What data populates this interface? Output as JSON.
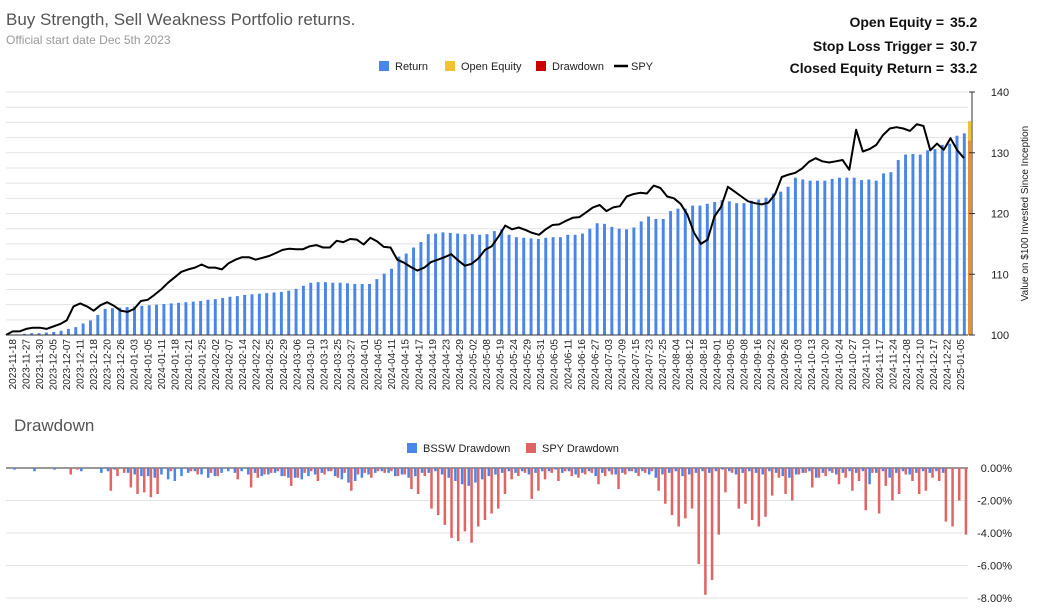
{
  "header": {
    "title": "Buy Strength, Sell Weakness Portfolio returns.",
    "subtitle": "Official start date Dec 5th 2023",
    "stats": [
      {
        "label": "Open Equity =",
        "value": "35.2"
      },
      {
        "label": "Stop Loss Trigger =",
        "value": "30.7"
      },
      {
        "label": "Closed Equity Return =",
        "value": "33.2"
      }
    ]
  },
  "colors": {
    "return": "#4a86e8",
    "open_equity": "#f1c232",
    "drawdown": "#cc0000",
    "spy": "#000000",
    "bssw_dd": "#4a86e8",
    "spy_dd": "#e06666"
  },
  "chart_data": [
    {
      "type": "bar",
      "subtype": "bar+line",
      "title": "",
      "ylabel": "Value on $100 Invested Since Inception",
      "ylim": [
        100,
        140
      ],
      "yticks": [
        100,
        110,
        120,
        130,
        140
      ],
      "grid": true,
      "legend": [
        "Return",
        "Open Equity",
        "Drawdown",
        "SPY"
      ],
      "legend_position": "top",
      "x_tick_labels": [
        "2023-11-18",
        "2023-11-27",
        "2023-11-30",
        "2023-12-05",
        "2023-12-07",
        "2023-12-11",
        "2023-12-18",
        "2023-12-20",
        "2023-12-26",
        "2024-01-03",
        "2024-01-05",
        "2024-01-11",
        "2024-01-18",
        "2024-01-21",
        "2024-01-25",
        "2024-02-02",
        "2024-02-07",
        "2024-02-14",
        "2024-02-22",
        "2024-02-25",
        "2024-02-29",
        "2024-03-06",
        "2024-03-10",
        "2024-03-13",
        "2024-03-25",
        "2024-03-27",
        "2024-04-01",
        "2024-04-05",
        "2024-04-11",
        "2024-04-15",
        "2024-04-17",
        "2024-04-19",
        "2024-04-23",
        "2024-04-29",
        "2024-05-02",
        "2024-05-08",
        "2024-05-19",
        "2024-05-24",
        "2024-05-29",
        "2024-05-31",
        "2024-06-05",
        "2024-06-11",
        "2024-06-16",
        "2024-06-27",
        "2024-07-03",
        "2024-07-09",
        "2024-07-15",
        "2024-07-23",
        "2024-07-25",
        "2024-08-04",
        "2024-08-12",
        "2024-08-18",
        "2024-09-01",
        "2024-09-05",
        "2024-09-08",
        "2024-09-16",
        "2024-09-22",
        "2024-09-26",
        "2024-10-03",
        "2024-10-13",
        "2024-10-20",
        "2024-10-24",
        "2024-10-27",
        "2024-11-10",
        "2024-11-17",
        "2024-11-24",
        "2024-12-08",
        "2024-12-10",
        "2024-12-17",
        "2024-12-22",
        "2025-01-05"
      ],
      "series": [
        {
          "name": "Return",
          "type": "bar",
          "values": [
            100.0,
            100.1,
            100.2,
            100.3,
            100.3,
            100.4,
            100.5,
            100.7,
            101.0,
            101.3,
            101.9,
            102.4,
            103.3,
            104.3,
            104.4,
            104.5,
            104.6,
            104.7,
            104.8,
            104.9,
            105.0,
            105.1,
            105.2,
            105.3,
            105.4,
            105.5,
            105.6,
            105.8,
            105.9,
            106.1,
            106.3,
            106.4,
            106.6,
            106.7,
            106.8,
            106.9,
            107.0,
            107.1,
            107.3,
            107.6,
            108.1,
            108.6,
            108.7,
            108.7,
            108.6,
            108.6,
            108.5,
            108.4,
            108.4,
            108.4,
            109.2,
            110.1,
            110.9,
            112.9,
            113.4,
            114.4,
            115.3,
            116.6,
            116.7,
            116.9,
            116.8,
            116.7,
            116.6,
            116.6,
            116.5,
            116.6,
            117.1,
            117.4,
            116.5,
            116.1,
            116.0,
            115.9,
            115.8,
            116.0,
            116.1,
            116.1,
            116.5,
            116.5,
            116.7,
            117.5,
            118.4,
            118.3,
            117.8,
            117.5,
            117.4,
            117.7,
            118.7,
            119.5,
            119.1,
            119.1,
            120.4,
            120.8,
            120.8,
            121.3,
            121.3,
            121.6,
            121.9,
            122.2,
            122.0,
            121.7,
            121.7,
            122.1,
            122.3,
            122.6,
            123.3,
            123.6,
            124.4,
            125.9,
            125.6,
            125.4,
            125.4,
            125.4,
            125.7,
            125.9,
            125.9,
            125.9,
            125.5,
            125.6,
            125.4,
            126.6,
            126.8,
            128.8,
            129.7,
            129.8,
            129.7,
            130.4,
            130.6,
            131.3,
            131.5,
            132.8,
            133.2
          ]
        },
        {
          "name": "SPY",
          "type": "line",
          "values": [
            100.0,
            100.6,
            100.6,
            101.0,
            101.2,
            101.2,
            101.0,
            101.4,
            101.8,
            102.4,
            104.7,
            105.2,
            104.7,
            104.0,
            104.9,
            105.4,
            104.8,
            104.0,
            103.8,
            104.3,
            105.6,
            105.8,
            106.6,
            107.5,
            108.6,
            109.5,
            110.4,
            110.8,
            111.1,
            111.6,
            111.1,
            111.1,
            110.8,
            111.8,
            112.4,
            112.8,
            112.8,
            112.4,
            112.7,
            113.0,
            113.5,
            114.0,
            114.2,
            114.1,
            114.1,
            114.6,
            114.8,
            114.4,
            114.4,
            115.5,
            115.3,
            115.8,
            115.7,
            114.9,
            116.0,
            115.4,
            114.5,
            114.4,
            112.4,
            111.9,
            111.2,
            110.6,
            111.1,
            112.0,
            112.4,
            112.8,
            113.3,
            112.3,
            111.4,
            111.7,
            112.6,
            114.0,
            114.6,
            116.2,
            118.0,
            117.4,
            117.7,
            117.3,
            116.8,
            116.5,
            117.4,
            118.1,
            118.2,
            118.8,
            119.3,
            119.4,
            120.2,
            121.0,
            121.4,
            120.4,
            121.0,
            121.2,
            122.8,
            123.2,
            123.4,
            123.3,
            124.6,
            124.2,
            122.8,
            122.5,
            121.6,
            119.8,
            116.8,
            115.0,
            115.7,
            119.5,
            121.1,
            124.4,
            123.6,
            122.8,
            122.0,
            121.7,
            121.5,
            121.8,
            123.2,
            126.0,
            126.4,
            126.7,
            127.4,
            128.5,
            129.1,
            128.6,
            128.4,
            128.6,
            128.8,
            127.2,
            133.8,
            130.2,
            130.6,
            131.3,
            132.9,
            134.0,
            134.2,
            134.0,
            133.6,
            134.7,
            134.4,
            130.4,
            131.5,
            130.5,
            132.4,
            130.4,
            129.1
          ]
        },
        {
          "name": "Open Equity",
          "type": "marker",
          "value": 135.2
        },
        {
          "name": "Drawdown",
          "type": "marker",
          "range": [
            129.0,
            132.0
          ]
        }
      ]
    },
    {
      "type": "bar",
      "title": "Drawdown",
      "ylim": [
        -8,
        0
      ],
      "yticks": [
        "0.00%",
        "-2.00%",
        "-4.00%",
        "-6.00%",
        "-8.00%"
      ],
      "legend": [
        "BSSW Drawdown",
        "SPY Drawdown"
      ],
      "legend_position": "top",
      "series": [
        {
          "name": "BSSW Drawdown",
          "values": [
            0,
            -0.1,
            0,
            0,
            -0.2,
            0,
            0,
            -0.1,
            0,
            0,
            0,
            -0.2,
            0,
            0,
            -0.3,
            -0.2,
            -0.1,
            0,
            -0.3,
            -0.4,
            -0.5,
            -0.5,
            -0.6,
            -0.4,
            -0.7,
            -0.8,
            -0.5,
            -0.3,
            -0.2,
            -0.4,
            -0.6,
            -0.5,
            -0.3,
            -0.2,
            -0.3,
            -0.2,
            -0.4,
            -0.3,
            -0.5,
            -0.4,
            -0.3,
            -0.5,
            -0.6,
            -0.6,
            -0.7,
            -0.5,
            -0.4,
            -0.3,
            -0.2,
            -0.5,
            -0.7,
            -0.9,
            -0.8,
            -0.6,
            -0.4,
            -0.3,
            -0.2,
            -0.3,
            -0.5,
            -0.4,
            -0.6,
            -0.5,
            -0.3,
            -0.3,
            -0.2,
            -0.4,
            -0.6,
            -0.8,
            -1.0,
            -1.1,
            -0.9,
            -0.7,
            -0.5,
            -0.4,
            -0.3,
            -0.2,
            -0.3,
            -0.2,
            -0.4,
            -0.3,
            -0.2,
            -0.2,
            -0.1,
            -0.3,
            -0.2,
            -0.4,
            -0.3,
            -0.2,
            -0.5,
            -0.3,
            -0.2,
            -0.4,
            -0.3,
            -0.2,
            -0.3,
            -0.2,
            -0.4,
            -0.6,
            -0.4,
            -0.3,
            -0.2,
            -0.5,
            -0.4,
            -0.3,
            -0.2,
            -0.3,
            -0.2,
            -0.1,
            -0.2,
            -0.4,
            -0.3,
            -0.2,
            -0.3,
            -0.4,
            -0.2,
            -0.3,
            -0.5,
            -0.6,
            -0.4,
            -0.3,
            -0.2,
            -0.6,
            -0.3,
            -0.2,
            -0.4,
            -0.3,
            -0.2,
            -0.3,
            -0.2,
            -1.0,
            -0.3,
            -0.2,
            -0.6,
            -0.3,
            -0.2,
            -0.4,
            -0.3,
            -0.2,
            -0.3,
            -0.2,
            -0.3
          ]
        },
        {
          "name": "SPY Drawdown",
          "values": [
            0,
            0,
            0,
            0,
            0,
            0,
            0,
            0,
            0,
            -0.4,
            -0.1,
            0,
            0,
            0,
            0,
            -1.4,
            -0.5,
            -0.3,
            -1.2,
            -1.6,
            -1.5,
            -1.8,
            -1.6,
            0,
            -0.2,
            0,
            0,
            -0.2,
            -0.4,
            0,
            -0.3,
            -0.5,
            0,
            0,
            -0.7,
            0,
            -1.2,
            -0.6,
            -0.4,
            -0.3,
            -0.2,
            -0.5,
            -1.1,
            -0.6,
            -0.3,
            -0.2,
            -0.8,
            -0.4,
            -0.2,
            -0.6,
            -0.3,
            -1.4,
            -0.4,
            -0.3,
            -0.6,
            -0.2,
            -0.3,
            -0.2,
            -0.5,
            -0.4,
            -1.3,
            -1.6,
            -0.5,
            -2.5,
            -2.9,
            -3.5,
            -4.3,
            -4.5,
            -3.9,
            -4.6,
            -3.6,
            -3.2,
            -2.8,
            -2.5,
            -1.6,
            -0.7,
            -0.5,
            -0.3,
            -1.9,
            -1.4,
            -0.7,
            -0.3,
            -0.8,
            -0.2,
            -0.5,
            -0.6,
            -0.4,
            -0.3,
            -1.0,
            -0.5,
            -0.4,
            -1.3,
            -0.4,
            -0.2,
            -0.5,
            -0.3,
            -0.2,
            -1.4,
            -2.2,
            -2.9,
            -3.6,
            -3.1,
            -2.5,
            -5.9,
            -7.8,
            -6.9,
            -4.1,
            -1.5,
            -0.3,
            -2.5,
            -2.2,
            -3.2,
            -3.6,
            -3.0,
            -1.7,
            -0.6,
            -1.6,
            -2.0,
            -0.4,
            -0.3,
            -1.2,
            -0.6,
            -0.5,
            -0.3,
            -1.0,
            -0.6,
            -1.4,
            -0.8,
            -2.6,
            -0.3,
            -2.8,
            -1.1,
            -2.0,
            -1.6,
            -0.4,
            -0.8,
            -1.6,
            -1.4,
            -0.6,
            -0.8,
            -3.3,
            -3.6,
            -2.0,
            -4.1
          ]
        }
      ]
    }
  ]
}
